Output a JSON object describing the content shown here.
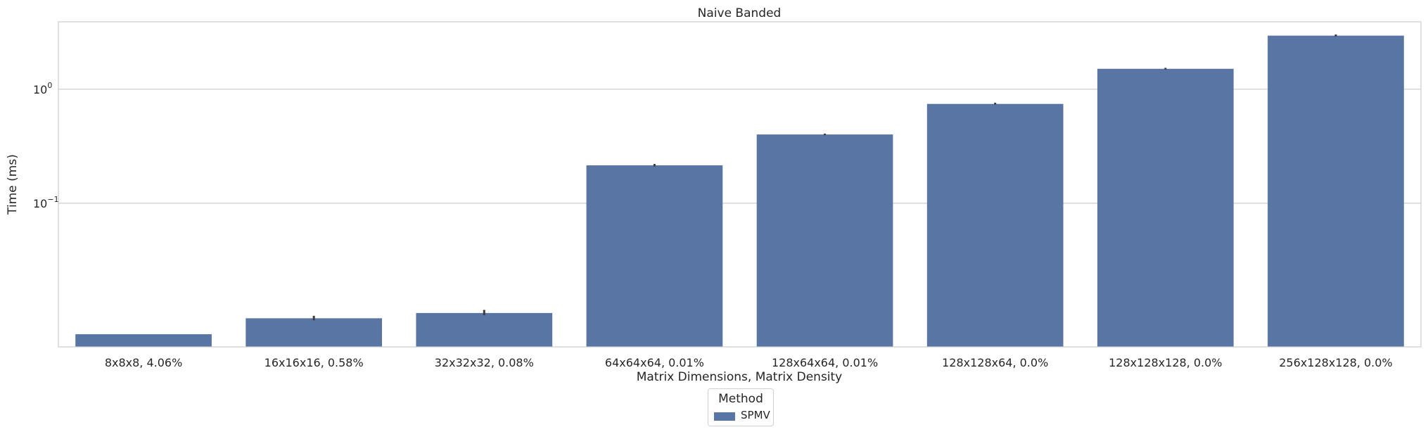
{
  "chart_data": {
    "type": "bar",
    "title": "Naive Banded",
    "xlabel": "Matrix Dimensions, Matrix Density",
    "ylabel": "Time (ms)",
    "yscale": "log",
    "ylim": [
      0.0055,
      3.9
    ],
    "yticks": [
      {
        "value": 0.1,
        "base": "10",
        "exp": "−1"
      },
      {
        "value": 1,
        "base": "10",
        "exp": "0"
      }
    ],
    "grid": true,
    "categories": [
      "8x8x8, 4.06%",
      "16x16x16, 0.58%",
      "32x32x32, 0.08%",
      "64x64x64, 0.01%",
      "128x64x64, 0.01%",
      "128x128x64, 0.0%",
      "128x128x128, 0.0%",
      "256x128x128, 0.0%"
    ],
    "series": [
      {
        "name": "SPMV",
        "color": "#5975a4",
        "values": [
          0.0071,
          0.0098,
          0.0109,
          0.215,
          0.401,
          0.743,
          1.51,
          2.95
        ],
        "errors_low": [
          0.0071,
          0.0094,
          0.0104,
          0.21,
          0.395,
          0.733,
          1.49,
          2.9
        ],
        "errors_high": [
          0.0071,
          0.0103,
          0.0116,
          0.221,
          0.408,
          0.762,
          1.54,
          3.02
        ]
      }
    ],
    "legend": {
      "title": "Method",
      "position": "bottom-center"
    }
  }
}
